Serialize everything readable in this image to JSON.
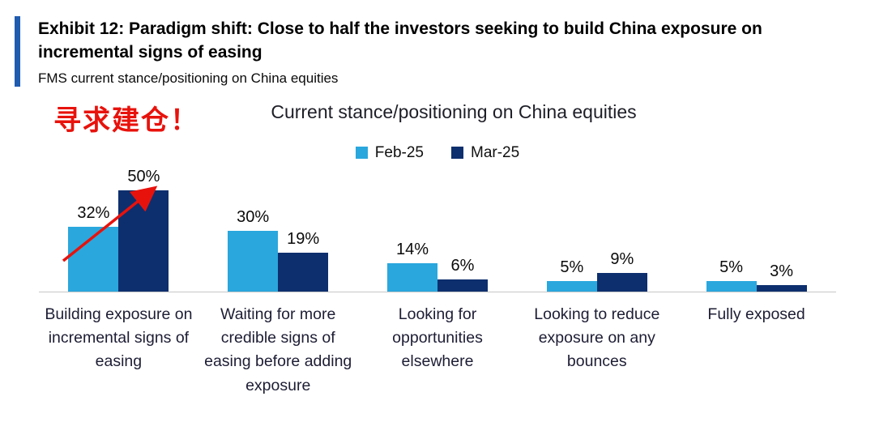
{
  "header": {
    "exhibit_title": "Exhibit 12: Paradigm shift: Close to half the investors seeking to build China exposure on incremental signs of easing",
    "subtitle": "FMS current stance/positioning on China equities"
  },
  "annotation": {
    "text": "寻求建仓！",
    "color": "#e8120c"
  },
  "chart_data": {
    "type": "bar",
    "title": "Current stance/positioning on China equities",
    "categories": [
      "Building exposure on incremental signs of easing",
      "Waiting for more credible signs of easing before adding exposure",
      "Looking for opportunities elsewhere",
      "Looking to reduce exposure on any bounces",
      "Fully exposed"
    ],
    "series": [
      {
        "name": "Feb-25",
        "color": "#2aa7dd",
        "values": [
          32,
          30,
          14,
          5,
          5
        ]
      },
      {
        "name": "Mar-25",
        "color": "#0d2f6e",
        "values": [
          50,
          19,
          6,
          9,
          3
        ]
      }
    ],
    "value_suffix": "%",
    "ylim": [
      0,
      55
    ],
    "grid": false,
    "legend_position": "top",
    "xlabel": "",
    "ylabel": ""
  },
  "colors": {
    "accent_bar": "#1f5cb0",
    "axis_line": "#c6c6c6",
    "annotation_red": "#e8120c"
  }
}
